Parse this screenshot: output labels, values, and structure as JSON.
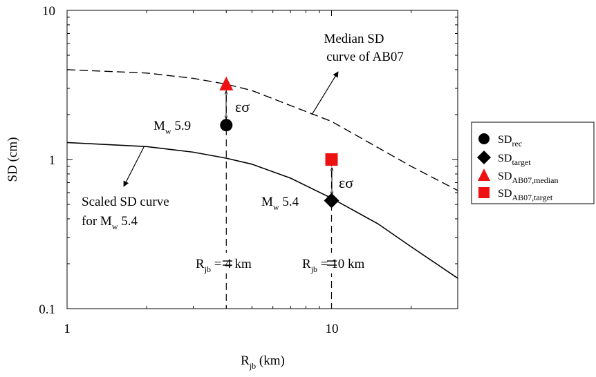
{
  "chart_data": {
    "type": "scatter",
    "xscale": "log",
    "yscale": "log",
    "xlim": [
      1,
      30
    ],
    "ylim": [
      0.1,
      10
    ],
    "xticks": [
      "1",
      "10"
    ],
    "yticks": [
      "0.1",
      "1",
      "10"
    ],
    "xlabel": {
      "main": "R",
      "sub": "jb",
      "rest": " (km)"
    },
    "ylabel": "SD (cm)",
    "grid": false,
    "legend_position": "right",
    "series": [
      {
        "name": "Median SD curve of AB07",
        "kind": "line",
        "style": "dashed",
        "color": "#000000",
        "x": [
          1,
          2,
          3,
          4,
          5,
          7,
          10,
          15,
          20,
          30
        ],
        "y": [
          4.0,
          3.8,
          3.5,
          3.2,
          2.9,
          2.3,
          1.8,
          1.2,
          0.9,
          0.62
        ]
      },
      {
        "name": "Scaled SD curve for Mw 5.4",
        "kind": "line",
        "style": "solid",
        "color": "#000000",
        "x": [
          1,
          2,
          3,
          4,
          5,
          7,
          10,
          15,
          20,
          30
        ],
        "y": [
          1.3,
          1.22,
          1.12,
          1.02,
          0.93,
          0.75,
          0.55,
          0.37,
          0.26,
          0.16
        ]
      },
      {
        "name": "SD_rec",
        "label": {
          "main": "SD",
          "sub": "rec"
        },
        "kind": "point",
        "marker": "circle",
        "color": "#000000",
        "x": [
          4
        ],
        "y": [
          1.7
        ]
      },
      {
        "name": "SD_target",
        "label": {
          "main": "SD",
          "sub": "target"
        },
        "kind": "point",
        "marker": "diamond",
        "color": "#000000",
        "x": [
          10
        ],
        "y": [
          0.53
        ]
      },
      {
        "name": "SD_AB07,median",
        "label": {
          "main": "SD",
          "sub": "AB07,median"
        },
        "kind": "point",
        "marker": "triangle",
        "color": "#ee1111",
        "x": [
          4
        ],
        "y": [
          3.2
        ]
      },
      {
        "name": "SD_AB07,target",
        "label": {
          "main": "SD",
          "sub": "AB07,target"
        },
        "kind": "point",
        "marker": "square",
        "color": "#ee1111",
        "x": [
          10
        ],
        "y": [
          1.0
        ]
      }
    ],
    "reference_lines": [
      {
        "x": 4,
        "label": {
          "main": "R",
          "sub": "jb",
          "rest": " = 4 km"
        }
      },
      {
        "x": 10,
        "label": {
          "main": "R",
          "sub": "jb",
          "rest": " = 10 km"
        }
      }
    ],
    "annotations": {
      "median_curve": {
        "line1": "Median SD",
        "line2": "curve of AB07"
      },
      "scaled_curve": {
        "line1": "Scaled SD curve",
        "line2a": "for M",
        "line2sub": "w",
        "line2b": " 5.4"
      },
      "mw59": {
        "main": "M",
        "sub": "w",
        "rest": " 5.9"
      },
      "mw54": {
        "main": "M",
        "sub": "w",
        "rest": " 5.4"
      },
      "eps_sigma": "εσ"
    }
  }
}
